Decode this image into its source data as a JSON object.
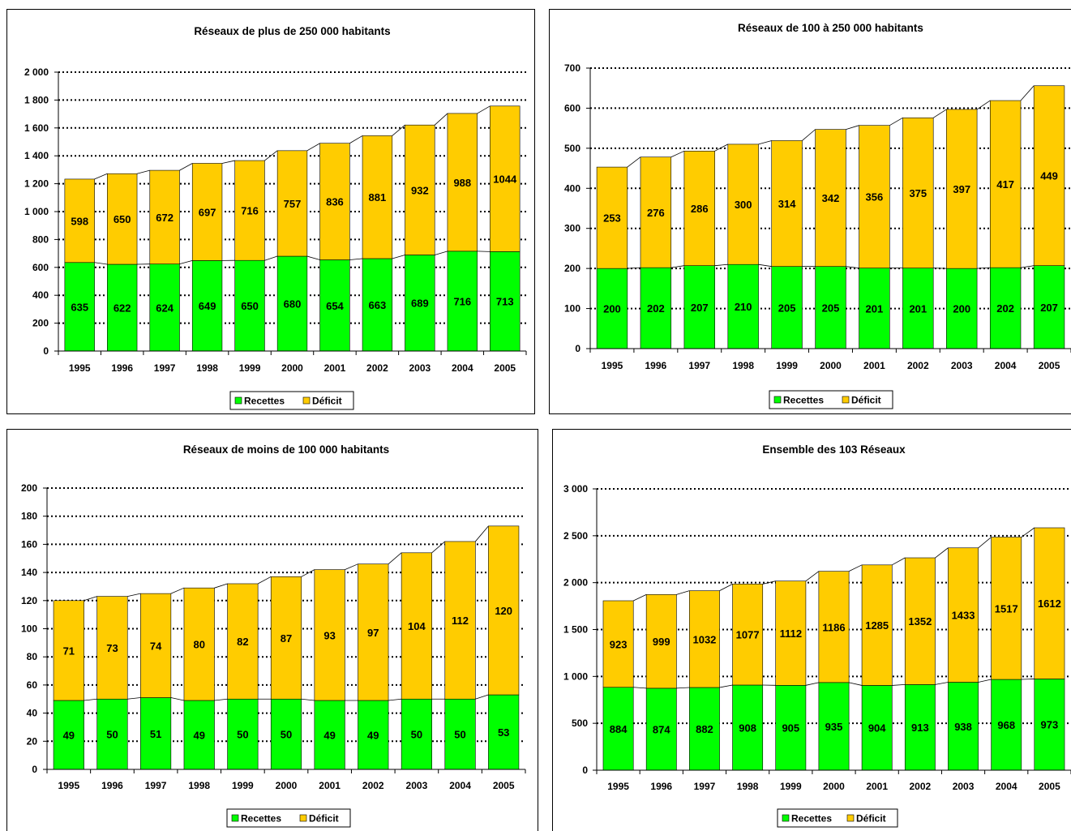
{
  "colors": {
    "recettes": "#00FF00",
    "deficit": "#FFCC00",
    "grid": "#000000",
    "background": "#FFFFFF"
  },
  "chart_data": [
    {
      "type": "bar",
      "stacked": true,
      "title": "Réseaux de plus de 250 000 habitants",
      "categories": [
        "1995",
        "1996",
        "1997",
        "1998",
        "1999",
        "2000",
        "2001",
        "2002",
        "2003",
        "2004",
        "2005"
      ],
      "series": [
        {
          "name": "Recettes",
          "color": "#00FF00",
          "values": [
            635,
            622,
            624,
            649,
            650,
            680,
            654,
            663,
            689,
            716,
            713
          ]
        },
        {
          "name": "Déficit",
          "color": "#FFCC00",
          "values": [
            598,
            650,
            672,
            697,
            716,
            757,
            836,
            881,
            932,
            988,
            1044
          ]
        }
      ],
      "ylim": [
        0,
        2000
      ],
      "yticks": [
        0,
        200,
        400,
        600,
        800,
        1000,
        1200,
        1400,
        1600,
        1800,
        2000
      ],
      "ytick_labels": [
        "0",
        "200",
        "400",
        "600",
        "800",
        "1 000",
        "1 200",
        "1 400",
        "1 600",
        "1 800",
        "2 000"
      ],
      "grid": true,
      "legend": "bottom"
    },
    {
      "type": "bar",
      "stacked": true,
      "title": "Réseaux de 100 à 250 000 habitants",
      "categories": [
        "1995",
        "1996",
        "1997",
        "1998",
        "1999",
        "2000",
        "2001",
        "2002",
        "2003",
        "2004",
        "2005"
      ],
      "series": [
        {
          "name": "Recettes",
          "color": "#00FF00",
          "values": [
            200,
            202,
            207,
            210,
            205,
            205,
            201,
            201,
            200,
            202,
            207
          ]
        },
        {
          "name": "Déficit",
          "color": "#FFCC00",
          "values": [
            253,
            276,
            286,
            300,
            314,
            342,
            356,
            375,
            397,
            417,
            449
          ]
        }
      ],
      "ylim": [
        0,
        700
      ],
      "yticks": [
        0,
        100,
        200,
        300,
        400,
        500,
        600,
        700
      ],
      "ytick_labels": [
        "0",
        "100",
        "200",
        "300",
        "400",
        "500",
        "600",
        "700"
      ],
      "grid": true,
      "legend": "bottom"
    },
    {
      "type": "bar",
      "stacked": true,
      "title": "Réseaux de moins de 100 000 habitants",
      "categories": [
        "1995",
        "1996",
        "1997",
        "1998",
        "1999",
        "2000",
        "2001",
        "2002",
        "2003",
        "2004",
        "2005"
      ],
      "series": [
        {
          "name": "Recettes",
          "color": "#00FF00",
          "values": [
            49,
            50,
            51,
            49,
            50,
            50,
            49,
            49,
            50,
            50,
            53
          ]
        },
        {
          "name": "Déficit",
          "color": "#FFCC00",
          "values": [
            71,
            73,
            74,
            80,
            82,
            87,
            93,
            97,
            104,
            112,
            120
          ]
        }
      ],
      "ylim": [
        0,
        200
      ],
      "yticks": [
        0,
        20,
        40,
        60,
        80,
        100,
        120,
        140,
        160,
        180,
        200
      ],
      "ytick_labels": [
        "0",
        "20",
        "40",
        "60",
        "80",
        "100",
        "120",
        "140",
        "160",
        "180",
        "200"
      ],
      "grid": true,
      "legend": "bottom"
    },
    {
      "type": "bar",
      "stacked": true,
      "title": "Ensemble des 103 Réseaux",
      "categories": [
        "1995",
        "1996",
        "1997",
        "1998",
        "1999",
        "2000",
        "2001",
        "2002",
        "2003",
        "2004",
        "2005"
      ],
      "series": [
        {
          "name": "Recettes",
          "color": "#00FF00",
          "values": [
            884,
            874,
            882,
            908,
            905,
            935,
            904,
            913,
            938,
            968,
            973
          ]
        },
        {
          "name": "Déficit",
          "color": "#FFCC00",
          "values": [
            923,
            999,
            1032,
            1077,
            1112,
            1186,
            1285,
            1352,
            1433,
            1517,
            1612
          ]
        }
      ],
      "ylim": [
        0,
        3000
      ],
      "yticks": [
        0,
        500,
        1000,
        1500,
        2000,
        2500,
        3000
      ],
      "ytick_labels": [
        "0",
        "500",
        "1 000",
        "1 500",
        "2 000",
        "2 500",
        "3 000"
      ],
      "grid": true,
      "legend": "bottom"
    }
  ]
}
